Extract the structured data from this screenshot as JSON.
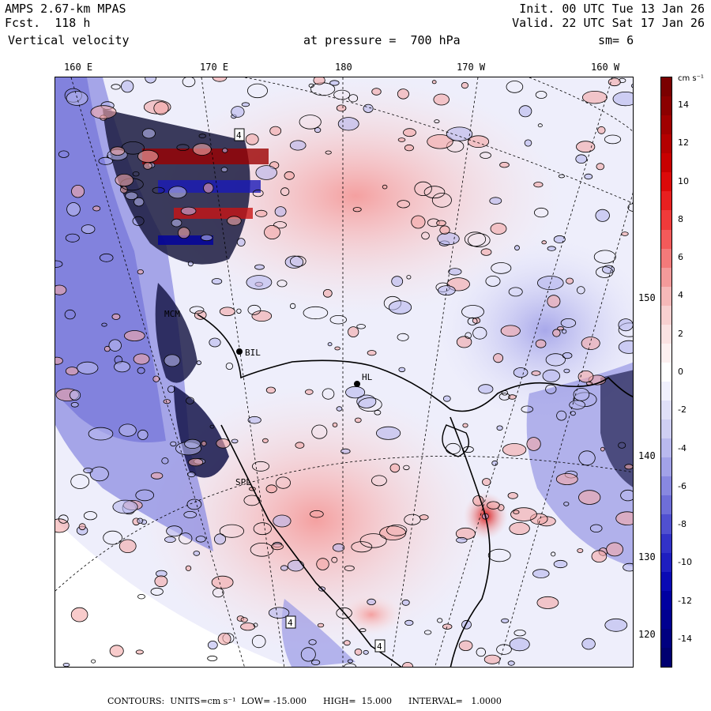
{
  "header": {
    "model": "AMPS 2.67-km MPAS",
    "forecast": "Fcst.  118 h",
    "field": "Vertical velocity",
    "init": "Init. 00 UTC Tue 13 Jan 26",
    "valid": "Valid. 22 UTC Sat 17 Jan 26",
    "pressure": "at pressure =  700 hPa",
    "smooth": "sm= 6"
  },
  "longitude_labels": [
    "160 E",
    "170 E",
    "180",
    "170 W",
    "160 W"
  ],
  "latitude_labels": [
    "150 W",
    "140 W",
    "130 W",
    "120 W"
  ],
  "colorbar": {
    "units": "cm s⁻¹",
    "tick_labels": [
      "14",
      "12",
      "10",
      "8",
      "6",
      "4",
      "2",
      "0",
      "-2",
      "-4",
      "-6",
      "-8",
      "-10",
      "-12",
      "-14"
    ],
    "colors": [
      "#7a0000",
      "#8b0000",
      "#a00000",
      "#b40000",
      "#c80000",
      "#dc0a0a",
      "#e82020",
      "#f03a3a",
      "#f45a5a",
      "#f47a7a",
      "#f49a9a",
      "#f6b8b8",
      "#f8d0d0",
      "#fbe2e2",
      "#fdf0f0",
      "#ffffff",
      "#f0f0fd",
      "#e0e0f8",
      "#cfcff3",
      "#b9b9ee",
      "#a2a2e8",
      "#8888e0",
      "#6e6ed8",
      "#5050d0",
      "#3232c8",
      "#1e1ec0",
      "#0a0ab4",
      "#0000a0",
      "#000090",
      "#000080",
      "#000070"
    ]
  },
  "stations": [
    "BIL",
    "MCM",
    "SPL",
    "HL",
    "4"
  ],
  "footer": "CONTOURS:  UNITS=cm s⁻¹  LOW= -15.000      HIGH=  15.000      INTERVAL=   1.0000"
}
